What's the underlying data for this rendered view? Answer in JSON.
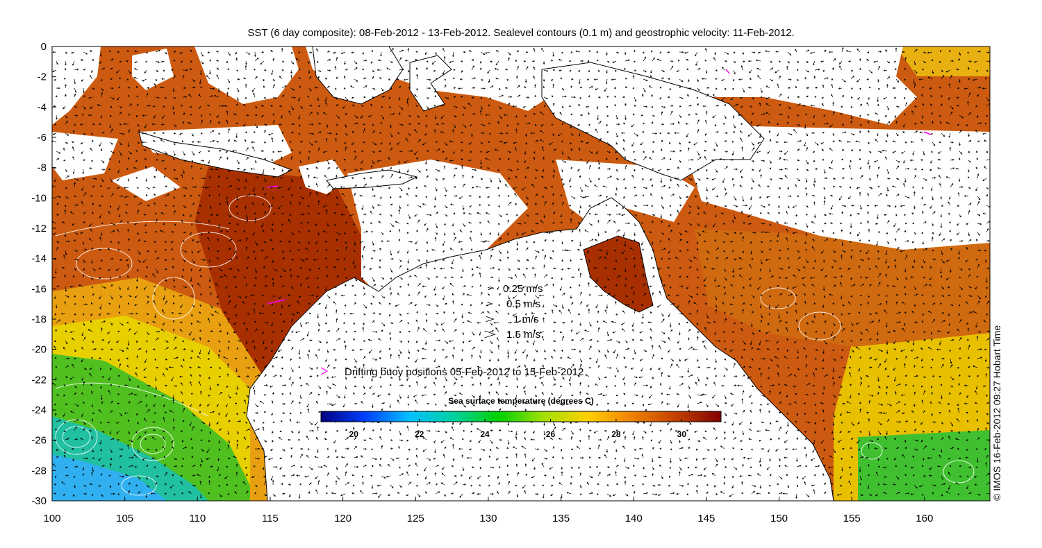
{
  "title": "SST (6 day composite): 08-Feb-2012 - 13-Feb-2012. Sealevel contours (0.1 m) and geostrophic velocity: 11-Feb-2012.",
  "credit": "© IMOS 16-Feb-2012 09:27 Hobart Time",
  "map": {
    "lon_range": [
      100,
      164.5
    ],
    "lat_range": [
      -30,
      0
    ],
    "x_ticks": [
      "100",
      "105",
      "110",
      "115",
      "120",
      "125",
      "130",
      "135",
      "140",
      "145",
      "150",
      "155",
      "160"
    ],
    "y_ticks": [
      "0",
      "-2",
      "-4",
      "-6",
      "-8",
      "-10",
      "-12",
      "-14",
      "-16",
      "-18",
      "-20",
      "-22",
      "-24",
      "-26",
      "-28",
      "-30"
    ],
    "land_color": "#ffffff",
    "coast_color": "#000000",
    "contour_color": "#ffffff"
  },
  "velocity_legend": {
    "items": [
      {
        "label": "0.25 m/s",
        "speed": 0.25
      },
      {
        "label": "0.5 m/s",
        "speed": 0.5
      },
      {
        "label": "1 m/s",
        "speed": 1
      },
      {
        "label": "1.5 m/s",
        "speed": 1.5
      }
    ]
  },
  "buoy_legend": {
    "label": "Drifting buoy positions 05-Feb-2012 to 15-Feb-2012",
    "color": "#ff00ff"
  },
  "colorbar": {
    "title": "Sea surface temperature (degrees C)",
    "range": [
      19,
      31.2
    ],
    "ticks": [
      "20",
      "22",
      "24",
      "26",
      "28",
      "30"
    ],
    "stops": [
      "#000080",
      "#0040ff",
      "#00c0ff",
      "#00d0a0",
      "#00d000",
      "#a0e000",
      "#ffd000",
      "#f08000",
      "#c04000",
      "#800000"
    ]
  }
}
